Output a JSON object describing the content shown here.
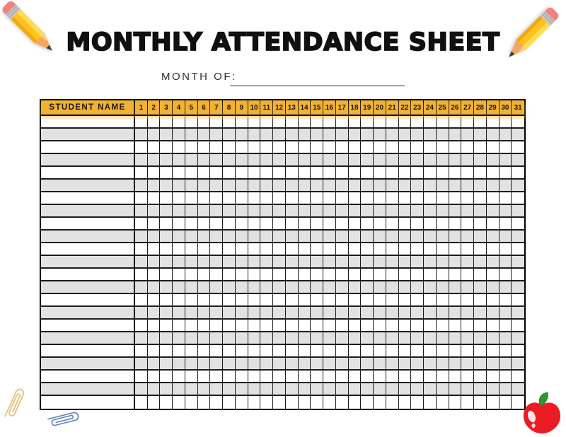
{
  "header": {
    "title": "MONTHLY ATTENDANCE SHEET",
    "month_label": "MONTH OF:"
  },
  "table": {
    "name_header": "STUDENT NAME",
    "days": [
      "1",
      "2",
      "3",
      "4",
      "5",
      "6",
      "7",
      "8",
      "9",
      "10",
      "11",
      "12",
      "13",
      "14",
      "15",
      "16",
      "17",
      "18",
      "19",
      "20",
      "21",
      "22",
      "23",
      "24",
      "25",
      "26",
      "27",
      "28",
      "29",
      "30",
      "31"
    ],
    "row_count": 23
  },
  "icons": {
    "top_left": "pencil-icon",
    "top_right": "pencil-icon",
    "bottom_left": [
      "paperclip-icon-tan",
      "paperclip-icon-blue"
    ],
    "bottom_right": "apple-icon"
  },
  "colors": {
    "title_black": "#101010",
    "header_gold": "#F2B233",
    "row_alt_gray": "#E2E2E2",
    "grid_border": "#1C1C1C",
    "pencil_yellow": "#FFC21E",
    "pencil_highlight": "#FFDC55",
    "pencil_shade": "#F2A713",
    "eraser_pink": "#F4817F",
    "ferrule_silver": "#C6C6C6",
    "wood_tan": "#F5A85C",
    "graphite_dark": "#3B3B3B",
    "apple_red": "#EC1C24",
    "leaf_green": "#2E9A2E",
    "paperclip_blue": "#5E81C2",
    "paperclip_tan": "#E6C379"
  }
}
